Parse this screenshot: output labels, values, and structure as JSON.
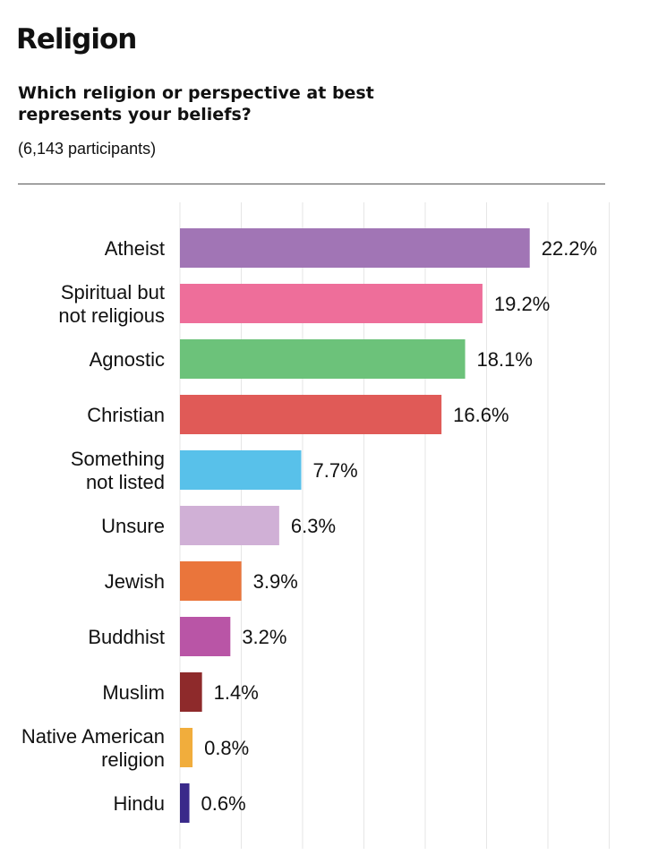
{
  "header": {
    "title": "Religion",
    "question": "Which religion or perspective at best represents your beliefs?",
    "participants": "(6,143 participants)"
  },
  "chart_data": {
    "type": "bar",
    "orientation": "horizontal",
    "grid": true,
    "xlim": [
      0,
      25
    ],
    "unit": "%",
    "categories": [
      [
        "Atheist"
      ],
      [
        "Spiritual but",
        "not religious"
      ],
      [
        "Agnostic"
      ],
      [
        "Christian"
      ],
      [
        "Something",
        "not listed"
      ],
      [
        "Unsure"
      ],
      [
        "Jewish"
      ],
      [
        "Buddhist"
      ],
      [
        "Muslim"
      ],
      [
        "Native American",
        "religion"
      ],
      [
        "Hindu"
      ]
    ],
    "values": [
      22.2,
      19.2,
      18.1,
      16.6,
      7.7,
      6.3,
      3.9,
      3.2,
      1.4,
      0.8,
      0.6
    ],
    "value_labels": [
      "22.2%",
      "19.2%",
      "18.1%",
      "16.6%",
      "7.7%",
      "6.3%",
      "3.9%",
      "3.2%",
      "1.4%",
      "0.8%",
      "0.6%"
    ],
    "colors": [
      "#a175b5",
      "#ee6e9a",
      "#6cc27a",
      "#e05a57",
      "#58c1ea",
      "#d0b0d6",
      "#ea753b",
      "#b955a6",
      "#8e2a2b",
      "#f1ad3c",
      "#3a2a8a"
    ]
  }
}
